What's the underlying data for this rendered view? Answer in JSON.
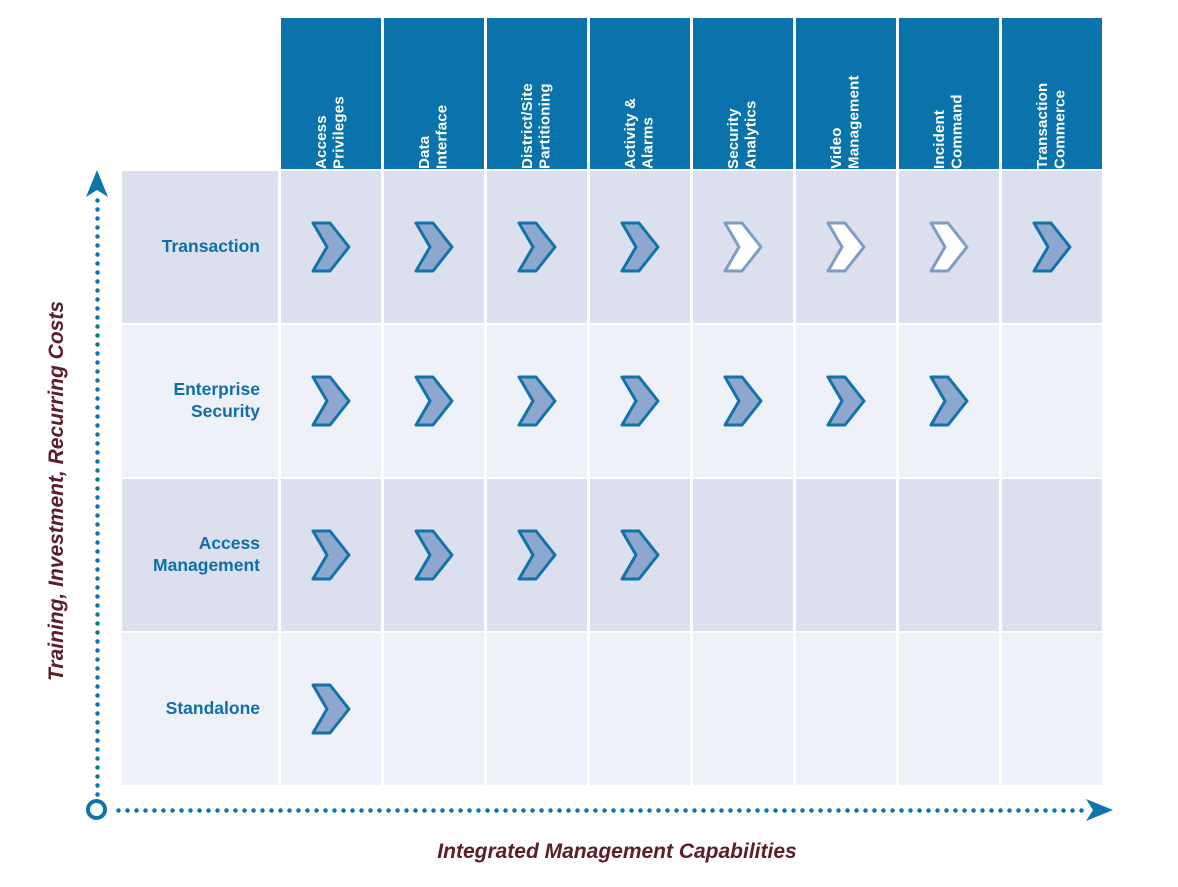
{
  "axes": {
    "x_label": "Integrated Management Capabilities",
    "y_label": "Training, Investment, Recurring Costs"
  },
  "colors": {
    "header_bg": "#0a73ab",
    "label_blue": "#0e6fa9",
    "row_bg_dark": "#dce0ee",
    "row_bg_light": "#eef1f8",
    "axis_color": "#0d74ac",
    "axis_label_color": "#5b2026",
    "chevron_fill": "#8da7ce",
    "chevron_stroke": "#1173a9",
    "chevron_outline_fill": "#ffffff",
    "chevron_outline_stroke": "#7e9dc4"
  },
  "icons": {
    "present_filled": "chevron-right-icon-filled",
    "present_outline": "chevron-right-icon-outline"
  },
  "chart_data": {
    "type": "heatmap",
    "xlabel": "Integrated Management Capabilities",
    "ylabel": "Training, Investment, Recurring Costs",
    "columns": [
      "Access\nPrivileges",
      "Data\nInterface",
      "District/Site\nPartitioning",
      "Activity &\nAlarms",
      "Security\nAnalytics",
      "Video\nManagement",
      "Incident\nCommand",
      "Transaction\nCommerce"
    ],
    "rows": [
      {
        "label": "Transaction",
        "cells": [
          "filled",
          "filled",
          "filled",
          "filled",
          "outline",
          "outline",
          "outline",
          "filled"
        ]
      },
      {
        "label": "Enterprise\nSecurity",
        "cells": [
          "filled",
          "filled",
          "filled",
          "filled",
          "filled",
          "filled",
          "filled",
          "empty"
        ]
      },
      {
        "label": "Access\nManagement",
        "cells": [
          "filled",
          "filled",
          "filled",
          "filled",
          "empty",
          "empty",
          "empty",
          "empty"
        ]
      },
      {
        "label": "Standalone",
        "cells": [
          "filled",
          "empty",
          "empty",
          "empty",
          "empty",
          "empty",
          "empty",
          "empty"
        ]
      }
    ]
  }
}
